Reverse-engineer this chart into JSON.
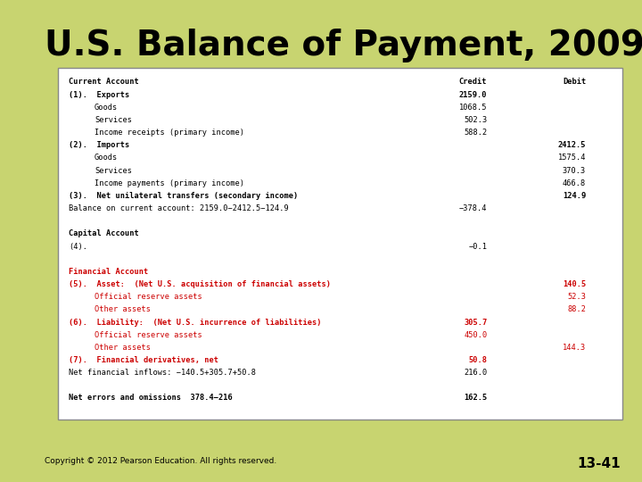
{
  "title": "U.S. Balance of Payment, 2009",
  "title_color": "#000000",
  "title_fontsize": 28,
  "bg_color": "#c8d470",
  "box_bg": "#ffffff",
  "copyright": "Copyright © 2012 Pearson Education. All rights reserved.",
  "slide_num": "13-41",
  "rows": [
    {
      "indent": 0,
      "text": "Current Account",
      "credit": "Credit",
      "debit": "Debit",
      "style": "header_black",
      "col_header": true
    },
    {
      "indent": 0,
      "text": "(1).  Exports",
      "credit": "2159.0",
      "debit": "",
      "style": "bold_black"
    },
    {
      "indent": 1,
      "text": "Goods",
      "credit": "1068.5",
      "debit": "",
      "style": "normal"
    },
    {
      "indent": 1,
      "text": "Services",
      "credit": "502.3",
      "debit": "",
      "style": "normal"
    },
    {
      "indent": 1,
      "text": "Income receipts (primary income)",
      "credit": "588.2",
      "debit": "",
      "style": "normal"
    },
    {
      "indent": 0,
      "text": "(2).  Imports",
      "credit": "",
      "debit": "2412.5",
      "style": "bold_black"
    },
    {
      "indent": 1,
      "text": "Goods",
      "credit": "",
      "debit": "1575.4",
      "style": "normal"
    },
    {
      "indent": 1,
      "text": "Services",
      "credit": "",
      "debit": "370.3",
      "style": "normal"
    },
    {
      "indent": 1,
      "text": "Income payments (primary income)",
      "credit": "",
      "debit": "466.8",
      "style": "normal"
    },
    {
      "indent": 0,
      "text": "(3).  Net unilateral transfers (secondary income)",
      "credit": "",
      "debit": "124.9",
      "style": "bold_black"
    },
    {
      "indent": 0,
      "text": "Balance on current account: 2159.0−2412.5−124.9",
      "credit": "−378.4",
      "debit": "",
      "style": "normal"
    },
    {
      "indent": 0,
      "text": "",
      "credit": "",
      "debit": "",
      "style": "spacer"
    },
    {
      "indent": 0,
      "text": "Capital Account",
      "credit": "",
      "debit": "",
      "style": "header_black"
    },
    {
      "indent": 0,
      "text": "(4).",
      "credit": "−0.1",
      "debit": "",
      "style": "normal"
    },
    {
      "indent": 0,
      "text": "",
      "credit": "",
      "debit": "",
      "style": "spacer"
    },
    {
      "indent": 0,
      "text": "Financial Account",
      "credit": "",
      "debit": "",
      "style": "header_red"
    },
    {
      "indent": 0,
      "text": "(5).  Asset:  (Net U.S. acquisition of financial assets)",
      "credit": "",
      "debit": "140.5",
      "style": "bold_red"
    },
    {
      "indent": 1,
      "text": "Official reserve assets",
      "credit": "",
      "debit": "52.3",
      "style": "normal_red"
    },
    {
      "indent": 1,
      "text": "Other assets",
      "credit": "",
      "debit": "88.2",
      "style": "normal_red"
    },
    {
      "indent": 0,
      "text": "(6).  Liability:  (Net U.S. incurrence of liabilities)",
      "credit": "305.7",
      "debit": "",
      "style": "bold_red"
    },
    {
      "indent": 1,
      "text": "Official reserve assets",
      "credit": "450.0",
      "debit": "",
      "style": "normal_red"
    },
    {
      "indent": 1,
      "text": "Other assets",
      "credit": "",
      "debit": "144.3",
      "style": "normal_red"
    },
    {
      "indent": 0,
      "text": "(7).  Financial derivatives, net",
      "credit": "50.8",
      "debit": "",
      "style": "bold_red"
    },
    {
      "indent": 0,
      "text": "Net financial inflows: −140.5+305.7+50.8",
      "credit": "216.0",
      "debit": "",
      "style": "normal"
    },
    {
      "indent": 0,
      "text": "",
      "credit": "",
      "debit": "",
      "style": "spacer"
    },
    {
      "indent": 0,
      "text": "Net errors and omissions  378.4−216",
      "credit": "162.5",
      "debit": "",
      "style": "bold_black_underline"
    }
  ]
}
